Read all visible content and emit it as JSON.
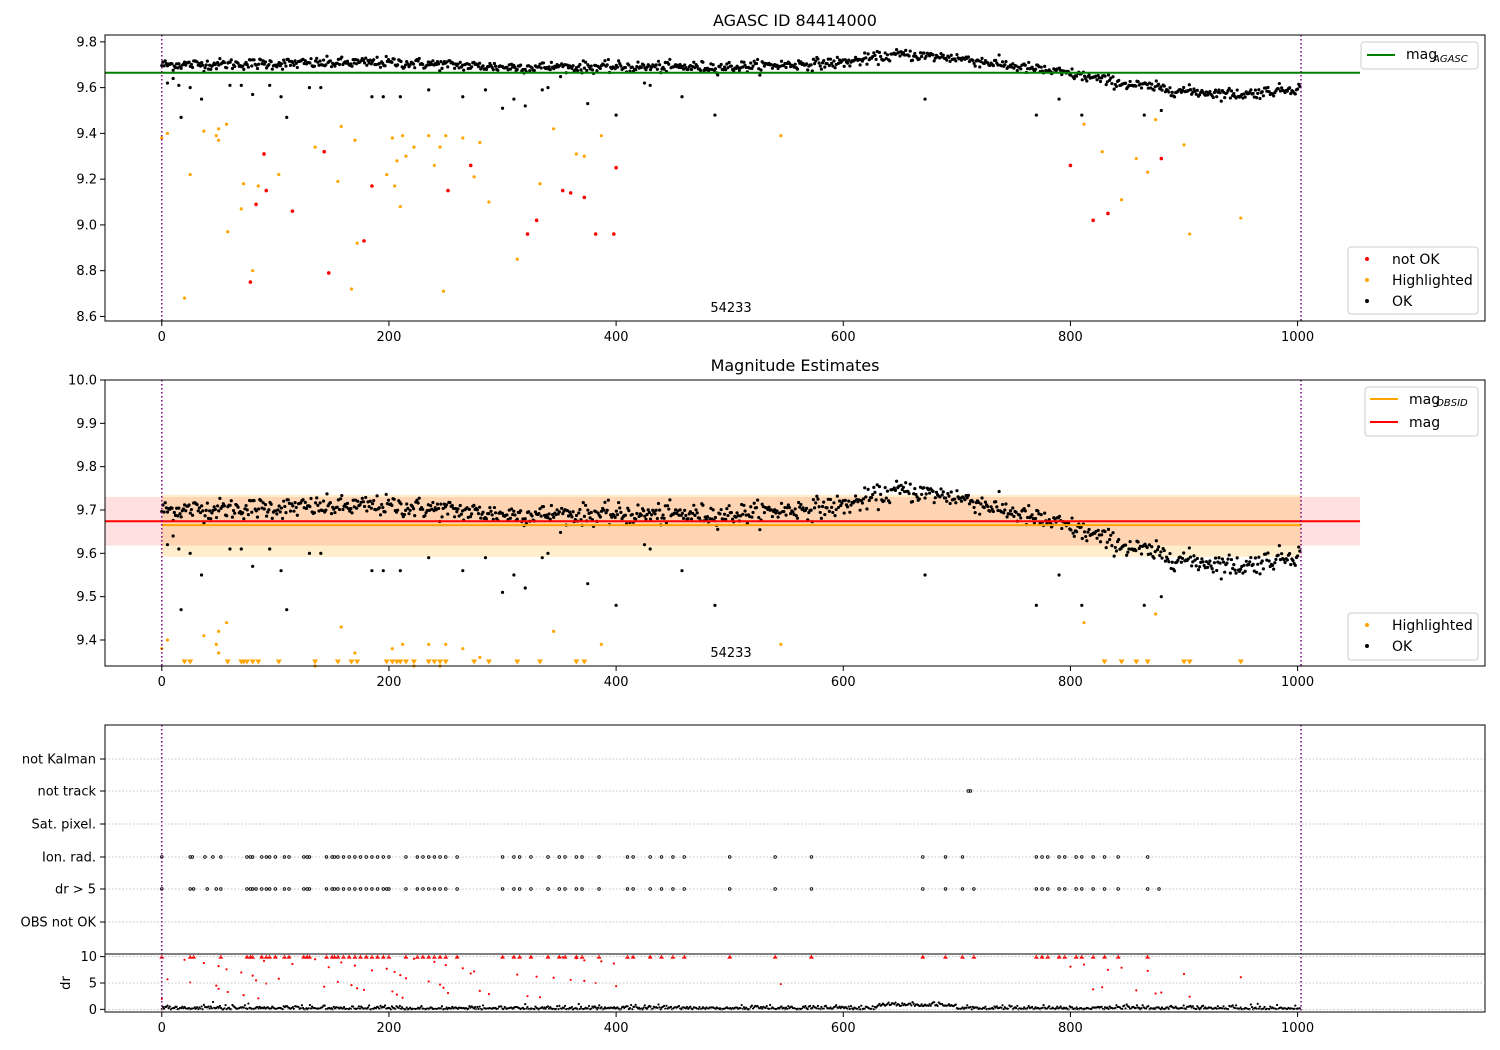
{
  "colors": {
    "ok": "#000000",
    "highlighted": "#ffa500",
    "not_ok": "#ff0000",
    "mag_agasc": "#008000",
    "mag_obsid": "#ffa500",
    "mag": "#ff0000",
    "obsid_line": "#800080",
    "grid": "#b0b0b0"
  },
  "chart_data": [
    {
      "type": "scatter",
      "title": "AGASC ID 84414000",
      "xlabel": "",
      "ylabel": "",
      "xlim": [
        -50,
        1165
      ],
      "ylim": [
        8.58,
        9.83
      ],
      "xticks": [
        0,
        200,
        400,
        600,
        800,
        1000
      ],
      "yticks": [
        8.6,
        8.8,
        9.0,
        9.2,
        9.4,
        9.6,
        9.8
      ],
      "xtick_labels": [
        "0",
        "200",
        "400",
        "600",
        "800",
        "1000"
      ],
      "ytick_labels": [
        "8.6",
        "8.8",
        "9.0",
        "9.2",
        "9.4",
        "9.6",
        "9.8"
      ],
      "obsid_boundaries": [
        0,
        1003
      ],
      "obsid_label": "54233",
      "mag_agasc": 9.665,
      "mag_agasc_span": [
        -50,
        1055
      ],
      "legend_top": {
        "label_main": "mag",
        "label_sub": "AGASC"
      },
      "legend_bottom": [
        "not OK",
        "Highlighted",
        "OK"
      ],
      "series": [
        {
          "name": "OK",
          "trend": [
            [
              0,
              9.7
            ],
            [
              200,
              9.71
            ],
            [
              300,
              9.69
            ],
            [
              500,
              9.69
            ],
            [
              600,
              9.71
            ],
            [
              650,
              9.745
            ],
            [
              700,
              9.73
            ],
            [
              770,
              9.68
            ],
            [
              800,
              9.66
            ],
            [
              850,
              9.615
            ],
            [
              900,
              9.585
            ],
            [
              950,
              9.57
            ],
            [
              1003,
              9.6
            ]
          ],
          "count": 1000,
          "scatter": 0.012,
          "outliers": [
            [
              5,
              9.62
            ],
            [
              10,
              9.64
            ],
            [
              15,
              9.61
            ],
            [
              17,
              9.47
            ],
            [
              25,
              9.6
            ],
            [
              35,
              9.55
            ],
            [
              60,
              9.61
            ],
            [
              70,
              9.61
            ],
            [
              80,
              9.57
            ],
            [
              95,
              9.61
            ],
            [
              105,
              9.56
            ],
            [
              110,
              9.47
            ],
            [
              130,
              9.6
            ],
            [
              140,
              9.6
            ],
            [
              185,
              9.56
            ],
            [
              195,
              9.56
            ],
            [
              210,
              9.56
            ],
            [
              235,
              9.59
            ],
            [
              265,
              9.56
            ],
            [
              285,
              9.59
            ],
            [
              300,
              9.51
            ],
            [
              310,
              9.55
            ],
            [
              320,
              9.52
            ],
            [
              335,
              9.59
            ],
            [
              340,
              9.6
            ],
            [
              375,
              9.53
            ],
            [
              400,
              9.48
            ],
            [
              425,
              9.62
            ],
            [
              430,
              9.61
            ],
            [
              458,
              9.56
            ],
            [
              487,
              9.48
            ],
            [
              672,
              9.55
            ],
            [
              770,
              9.48
            ],
            [
              790,
              9.55
            ],
            [
              810,
              9.48
            ],
            [
              865,
              9.48
            ],
            [
              880,
              9.5
            ]
          ]
        },
        {
          "name": "Highlighted",
          "points": [
            [
              0,
              9.38
            ],
            [
              5,
              9.4
            ],
            [
              20,
              8.68
            ],
            [
              25,
              9.22
            ],
            [
              37,
              9.41
            ],
            [
              48,
              9.39
            ],
            [
              50,
              9.42
            ],
            [
              50,
              9.37
            ],
            [
              57,
              9.44
            ],
            [
              58,
              8.97
            ],
            [
              70,
              9.07
            ],
            [
              72,
              9.18
            ],
            [
              80,
              8.8
            ],
            [
              85,
              9.17
            ],
            [
              103,
              9.22
            ],
            [
              135,
              9.34
            ],
            [
              155,
              9.19
            ],
            [
              158,
              9.43
            ],
            [
              167,
              8.72
            ],
            [
              170,
              9.37
            ],
            [
              172,
              8.92
            ],
            [
              198,
              9.22
            ],
            [
              203,
              9.38
            ],
            [
              205,
              9.17
            ],
            [
              207,
              9.28
            ],
            [
              210,
              9.08
            ],
            [
              212,
              9.39
            ],
            [
              215,
              9.3
            ],
            [
              222,
              9.34
            ],
            [
              235,
              9.39
            ],
            [
              240,
              9.26
            ],
            [
              245,
              9.34
            ],
            [
              250,
              9.39
            ],
            [
              248,
              8.71
            ],
            [
              265,
              9.38
            ],
            [
              280,
              9.36
            ],
            [
              275,
              9.21
            ],
            [
              288,
              9.1
            ],
            [
              313,
              8.85
            ],
            [
              333,
              9.18
            ],
            [
              345,
              9.42
            ],
            [
              365,
              9.31
            ],
            [
              372,
              9.3
            ],
            [
              387,
              9.39
            ],
            [
              545,
              9.39
            ],
            [
              812,
              9.44
            ],
            [
              828,
              9.32
            ],
            [
              845,
              9.11
            ],
            [
              858,
              9.29
            ],
            [
              868,
              9.23
            ],
            [
              875,
              9.46
            ],
            [
              900,
              9.35
            ],
            [
              905,
              8.96
            ],
            [
              950,
              9.03
            ]
          ]
        },
        {
          "name": "not OK",
          "points": [
            [
              78,
              8.75
            ],
            [
              83,
              9.09
            ],
            [
              90,
              9.31
            ],
            [
              92,
              9.15
            ],
            [
              115,
              9.06
            ],
            [
              143,
              9.32
            ],
            [
              147,
              8.79
            ],
            [
              178,
              8.93
            ],
            [
              185,
              9.17
            ],
            [
              252,
              9.15
            ],
            [
              272,
              9.26
            ],
            [
              322,
              8.96
            ],
            [
              330,
              9.02
            ],
            [
              353,
              9.15
            ],
            [
              360,
              9.14
            ],
            [
              372,
              9.12
            ],
            [
              382,
              8.96
            ],
            [
              398,
              8.96
            ],
            [
              400,
              9.25
            ],
            [
              800,
              9.26
            ],
            [
              820,
              9.02
            ],
            [
              833,
              9.05
            ],
            [
              880,
              9.29
            ]
          ]
        }
      ]
    },
    {
      "type": "scatter",
      "title": "Magnitude Estimates",
      "xlabel": "",
      "ylabel": "",
      "xlim": [
        -50,
        1165
      ],
      "ylim": [
        9.34,
        10.0
      ],
      "xticks": [
        0,
        200,
        400,
        600,
        800,
        1000
      ],
      "yticks": [
        9.4,
        9.5,
        9.6,
        9.7,
        9.8,
        9.9,
        10.0
      ],
      "xtick_labels": [
        "0",
        "200",
        "400",
        "600",
        "800",
        "1000"
      ],
      "ytick_labels": [
        "9.4",
        "9.5",
        "9.6",
        "9.7",
        "9.8",
        "9.9",
        "10.0"
      ],
      "obsid_label": "54233",
      "mag_obsid": 9.665,
      "mag_obsid_band": [
        9.592,
        9.735
      ],
      "mag_obsid_span": [
        0,
        1003
      ],
      "mag": 9.674,
      "mag_band": [
        9.618,
        9.73
      ],
      "mag_span": [
        -50,
        1055
      ],
      "legend_top": [
        {
          "label_main": "mag",
          "label_sub": "OBSID"
        },
        {
          "label_main": "mag",
          "label_sub": ""
        }
      ],
      "legend_bottom": [
        "Highlighted",
        "OK"
      ],
      "clipped_marker_x": [
        20,
        25,
        58,
        70,
        72,
        75,
        80,
        85,
        103,
        135,
        155,
        167,
        172,
        198,
        203,
        207,
        210,
        215,
        222,
        235,
        240,
        245,
        250,
        275,
        288,
        313,
        333,
        365,
        372,
        830,
        845,
        858,
        868,
        900,
        905,
        950
      ]
    },
    {
      "type": "scatter",
      "title": "",
      "xlim": [
        -50,
        1165
      ],
      "xticks": [
        0,
        200,
        400,
        600,
        800,
        1000
      ],
      "xtick_labels": [
        "0",
        "200",
        "400",
        "600",
        "800",
        "1000"
      ],
      "flag_rows": [
        "not Kalman",
        "not track",
        "Sat. pixel.",
        "Ion. rad.",
        "dr > 5",
        "OBS not OK"
      ],
      "flags": {
        "not track": [
          710,
          712
        ],
        "Ion. rad.": [
          0,
          25,
          27,
          38,
          45,
          52,
          75,
          78,
          80,
          88,
          92,
          95,
          100,
          108,
          112,
          125,
          128,
          130,
          145,
          150,
          152,
          155,
          160,
          165,
          170,
          175,
          180,
          185,
          190,
          195,
          200,
          215,
          225,
          230,
          235,
          240,
          245,
          250,
          260,
          300,
          310,
          315,
          325,
          340,
          350,
          355,
          365,
          370,
          385,
          410,
          415,
          430,
          440,
          450,
          460,
          500,
          540,
          572,
          670,
          690,
          705,
          770,
          775,
          780,
          790,
          795,
          805,
          810,
          820,
          830,
          842,
          868
        ],
        "dr > 5": [
          0,
          25,
          28,
          40,
          48,
          52,
          75,
          78,
          80,
          83,
          88,
          92,
          95,
          100,
          108,
          112,
          125,
          128,
          130,
          145,
          150,
          152,
          155,
          160,
          165,
          170,
          175,
          180,
          185,
          190,
          195,
          198,
          200,
          215,
          225,
          230,
          235,
          240,
          245,
          250,
          260,
          300,
          310,
          315,
          325,
          340,
          350,
          355,
          365,
          370,
          385,
          410,
          415,
          430,
          440,
          450,
          460,
          500,
          540,
          572,
          670,
          690,
          705,
          715,
          770,
          775,
          780,
          790,
          795,
          805,
          810,
          820,
          830,
          842,
          868,
          878
        ]
      },
      "dr": {
        "ylabel": "dr",
        "yticks": [
          0,
          5,
          10
        ],
        "ytick_labels": [
          "0",
          "5",
          "10"
        ],
        "ylim": [
          -0.5,
          10.5
        ],
        "clipped_x": [
          0,
          25,
          28,
          52,
          75,
          78,
          80,
          88,
          92,
          95,
          100,
          108,
          112,
          125,
          128,
          130,
          145,
          150,
          152,
          155,
          160,
          165,
          170,
          175,
          180,
          185,
          190,
          195,
          200,
          215,
          225,
          230,
          235,
          240,
          245,
          250,
          260,
          300,
          310,
          315,
          325,
          340,
          350,
          355,
          365,
          370,
          385,
          410,
          415,
          430,
          440,
          450,
          460,
          500,
          540,
          572,
          670,
          690,
          705,
          715,
          770,
          775,
          780,
          790,
          795,
          805,
          810,
          820,
          830,
          842,
          868
        ]
      }
    }
  ]
}
